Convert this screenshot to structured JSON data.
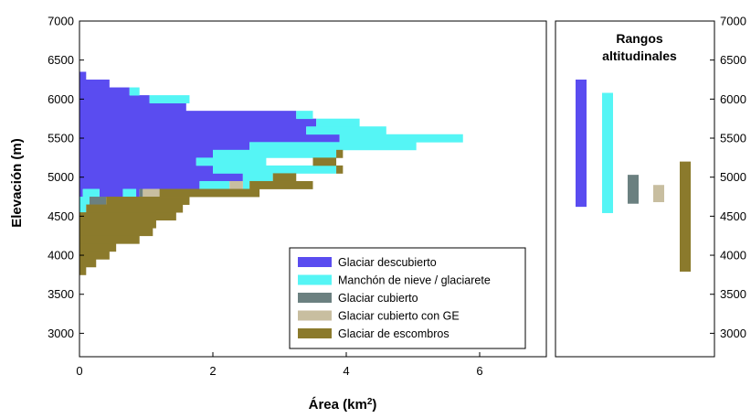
{
  "chart_data": [
    {
      "type": "bar",
      "orientation": "horizontal-stacked",
      "xlabel": "Área (km²)",
      "ylabel": "Elevación (m)",
      "xlim": [
        0,
        7
      ],
      "ylim": [
        2700,
        7000
      ],
      "xticks": [
        "0",
        "2",
        "4",
        "6"
      ],
      "yticks": [
        "3000",
        "3500",
        "4000",
        "4500",
        "5000",
        "5500",
        "6000",
        "6500",
        "7000"
      ],
      "bin_height": 100,
      "series": [
        {
          "name": "Glaciar descubierto",
          "color": "#5a4cf0",
          "values": [
            {
              "elev": 6300,
              "x0": 0,
              "x1": 0.1
            },
            {
              "elev": 6200,
              "x0": 0,
              "x1": 0.45
            },
            {
              "elev": 6100,
              "x0": 0,
              "x1": 0.75
            },
            {
              "elev": 6000,
              "x0": 0,
              "x1": 1.05
            },
            {
              "elev": 5900,
              "x0": 0,
              "x1": 1.6
            },
            {
              "elev": 5800,
              "x0": 0,
              "x1": 3.25
            },
            {
              "elev": 5700,
              "x0": 0,
              "x1": 3.55
            },
            {
              "elev": 5600,
              "x0": 0,
              "x1": 3.4
            },
            {
              "elev": 5500,
              "x0": 0,
              "x1": 3.9
            },
            {
              "elev": 5400,
              "x0": 0,
              "x1": 2.55
            },
            {
              "elev": 5300,
              "x0": 0,
              "x1": 2.0
            },
            {
              "elev": 5200,
              "x0": 0,
              "x1": 1.75
            },
            {
              "elev": 5100,
              "x0": 0,
              "x1": 2.0
            },
            {
              "elev": 5000,
              "x0": 0,
              "x1": 2.45
            },
            {
              "elev": 4900,
              "x0": 0,
              "x1": 1.8
            },
            {
              "elev": 4800,
              "x0": 0,
              "x1": 0.05
            },
            {
              "elev": 4800,
              "x0": 0.3,
              "x1": 0.65
            },
            {
              "elev": 4800,
              "x0": 0.85,
              "x1": 0.9
            }
          ]
        },
        {
          "name": "Manchón de nieve / glaciarete",
          "color": "#55f5f5",
          "values": [
            {
              "elev": 6100,
              "x0": 0.75,
              "x1": 0.9
            },
            {
              "elev": 6000,
              "x0": 1.05,
              "x1": 1.65
            },
            {
              "elev": 5800,
              "x0": 3.25,
              "x1": 3.5
            },
            {
              "elev": 5700,
              "x0": 3.55,
              "x1": 4.2
            },
            {
              "elev": 5600,
              "x0": 3.4,
              "x1": 4.6
            },
            {
              "elev": 5500,
              "x0": 3.9,
              "x1": 5.75
            },
            {
              "elev": 5400,
              "x0": 2.55,
              "x1": 5.05
            },
            {
              "elev": 5300,
              "x0": 2.0,
              "x1": 3.85
            },
            {
              "elev": 5200,
              "x0": 1.75,
              "x1": 2.8
            },
            {
              "elev": 5100,
              "x0": 2.0,
              "x1": 3.85
            },
            {
              "elev": 5000,
              "x0": 2.45,
              "x1": 2.9
            },
            {
              "elev": 4900,
              "x0": 1.8,
              "x1": 2.25
            },
            {
              "elev": 4900,
              "x0": 2.45,
              "x1": 2.55
            },
            {
              "elev": 4800,
              "x0": 0.05,
              "x1": 0.3
            },
            {
              "elev": 4800,
              "x0": 0.65,
              "x1": 0.85
            },
            {
              "elev": 4700,
              "x0": 0,
              "x1": 0.15
            },
            {
              "elev": 4600,
              "x0": 0,
              "x1": 0.1
            }
          ]
        },
        {
          "name": "Glaciar cubierto",
          "color": "#6b8080",
          "values": [
            {
              "elev": 4800,
              "x0": 0.9,
              "x1": 0.95
            },
            {
              "elev": 4700,
              "x0": 0.15,
              "x1": 0.4
            }
          ]
        },
        {
          "name": "Glaciar cubierto con GE",
          "color": "#c8bea0",
          "values": [
            {
              "elev": 4900,
              "x0": 2.25,
              "x1": 2.45
            },
            {
              "elev": 4800,
              "x0": 0.95,
              "x1": 1.2
            }
          ]
        },
        {
          "name": "Glaciar de escombros",
          "color": "#8b7a2c",
          "values": [
            {
              "elev": 5300,
              "x0": 3.85,
              "x1": 3.95
            },
            {
              "elev": 5200,
              "x0": 3.5,
              "x1": 3.85
            },
            {
              "elev": 5100,
              "x0": 3.85,
              "x1": 3.95
            },
            {
              "elev": 5000,
              "x0": 2.9,
              "x1": 3.25
            },
            {
              "elev": 4900,
              "x0": 2.55,
              "x1": 3.5
            },
            {
              "elev": 4800,
              "x0": 1.2,
              "x1": 2.7
            },
            {
              "elev": 4700,
              "x0": 0.4,
              "x1": 1.65
            },
            {
              "elev": 4600,
              "x0": 0.1,
              "x1": 1.55
            },
            {
              "elev": 4500,
              "x0": 0,
              "x1": 1.45
            },
            {
              "elev": 4400,
              "x0": 0,
              "x1": 1.15
            },
            {
              "elev": 4300,
              "x0": 0,
              "x1": 1.1
            },
            {
              "elev": 4200,
              "x0": 0,
              "x1": 0.9
            },
            {
              "elev": 4100,
              "x0": 0,
              "x1": 0.55
            },
            {
              "elev": 4000,
              "x0": 0,
              "x1": 0.45
            },
            {
              "elev": 3900,
              "x0": 0,
              "x1": 0.25
            },
            {
              "elev": 3800,
              "x0": 0,
              "x1": 0.1
            }
          ]
        }
      ],
      "legend": {
        "placement": "bottom-right",
        "entries": [
          {
            "label": "Glaciar descubierto",
            "color": "#5a4cf0"
          },
          {
            "label": "Manchón de nieve / glaciarete",
            "color": "#55f5f5"
          },
          {
            "label": "Glaciar cubierto",
            "color": "#6b8080"
          },
          {
            "label": "Glaciar cubierto con GE",
            "color": "#c8bea0"
          },
          {
            "label": "Glaciar de escombros",
            "color": "#8b7a2c"
          }
        ]
      }
    },
    {
      "type": "range",
      "title": "Rangos altitudinales",
      "title_lines": [
        "Rangos",
        "altitudinales"
      ],
      "ylim": [
        2700,
        7000
      ],
      "yticks": [
        "3000",
        "3500",
        "4000",
        "4500",
        "5000",
        "5500",
        "6000",
        "6500",
        "7000"
      ],
      "ranges": [
        {
          "name": "Glaciar descubierto",
          "color": "#5a4cf0",
          "min": 4620,
          "max": 6250
        },
        {
          "name": "Manchón de nieve / glaciarete",
          "color": "#55f5f5",
          "min": 4540,
          "max": 6080
        },
        {
          "name": "Glaciar cubierto",
          "color": "#6b8080",
          "min": 4660,
          "max": 5030
        },
        {
          "name": "Glaciar cubierto con GE",
          "color": "#c8bea0",
          "min": 4680,
          "max": 4900
        },
        {
          "name": "Glaciar de escombros",
          "color": "#8b7a2c",
          "min": 3790,
          "max": 5200
        }
      ]
    }
  ]
}
